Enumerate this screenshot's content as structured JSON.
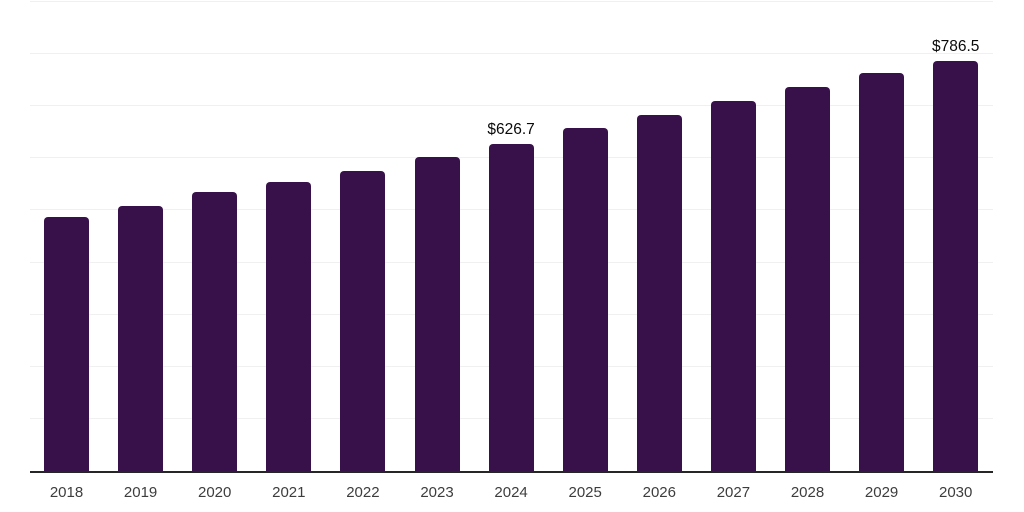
{
  "chart_data": {
    "type": "bar",
    "title": "",
    "xlabel": "",
    "ylabel": "",
    "categories": [
      "2018",
      "2019",
      "2020",
      "2021",
      "2022",
      "2023",
      "2024",
      "2025",
      "2026",
      "2027",
      "2028",
      "2029",
      "2030"
    ],
    "values": [
      488.0,
      509.5,
      534.5,
      555.2,
      576.3,
      602.0,
      626.7,
      657.6,
      683.2,
      710.6,
      737.5,
      763.2,
      786.5
    ],
    "data_labels": {
      "2024": "$626.7",
      "2030": "$786.5"
    },
    "ylim": [
      0,
      900
    ],
    "grid": true,
    "gridline_values": [
      100,
      200,
      300,
      400,
      500,
      600,
      700,
      800,
      900
    ],
    "legend": "none"
  },
  "colors": {
    "bar": "#38114a",
    "axis_line": "#262626",
    "gridline": "#f0f0f0",
    "tick_label": "#3d3d3d",
    "data_label": "#0a0a0a",
    "background": "#ffffff"
  }
}
